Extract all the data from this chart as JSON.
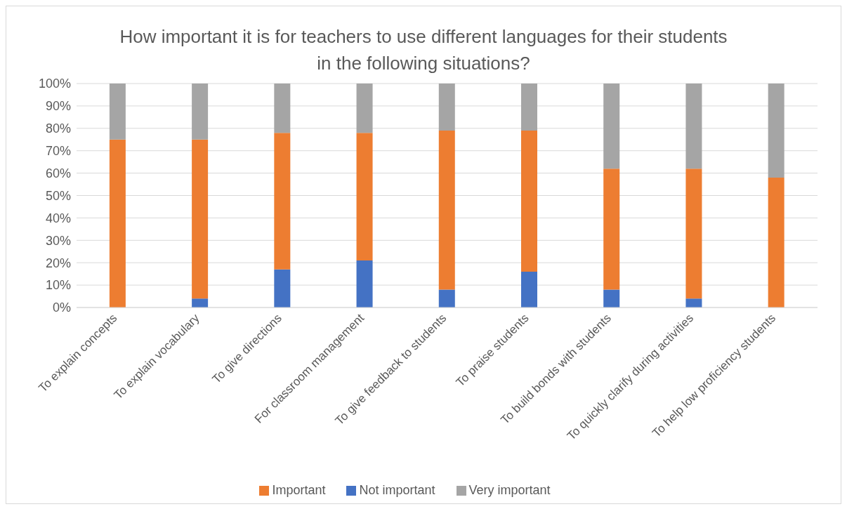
{
  "chart_data": {
    "type": "bar",
    "title": "How important it is for teachers to use different languages for their students in the following situations?",
    "categories": [
      "To explain concepts",
      "To explain vocabulary",
      "To give directions",
      "For classroom management",
      "To give feedback to students",
      "To praise students",
      "To build bonds with students",
      "To quickly clarify during activities",
      "To help low proficiency students"
    ],
    "series": [
      {
        "name": "Not important",
        "color": "#4472c4",
        "values": [
          0,
          4,
          17,
          21,
          8,
          16,
          8,
          4,
          0
        ]
      },
      {
        "name": "Important",
        "color": "#ed7d31",
        "values": [
          75,
          71,
          61,
          57,
          71,
          63,
          54,
          58,
          58
        ]
      },
      {
        "name": "Very important",
        "color": "#a5a5a5",
        "values": [
          25,
          25,
          22,
          22,
          21,
          21,
          38,
          38,
          42
        ]
      }
    ],
    "stacked": true,
    "ylim": [
      0,
      100
    ],
    "yticks": [
      {
        "value": 0,
        "label": "0%"
      },
      {
        "value": 10,
        "label": "10%"
      },
      {
        "value": 20,
        "label": "20%"
      },
      {
        "value": 30,
        "label": "30%"
      },
      {
        "value": 40,
        "label": "40%"
      },
      {
        "value": 50,
        "label": "50%"
      },
      {
        "value": 60,
        "label": "60%"
      },
      {
        "value": 70,
        "label": "70%"
      },
      {
        "value": 80,
        "label": "80%"
      },
      {
        "value": 90,
        "label": "90%"
      },
      {
        "value": 100,
        "label": "100%"
      }
    ],
    "grid": "y",
    "legend": "bottom"
  }
}
